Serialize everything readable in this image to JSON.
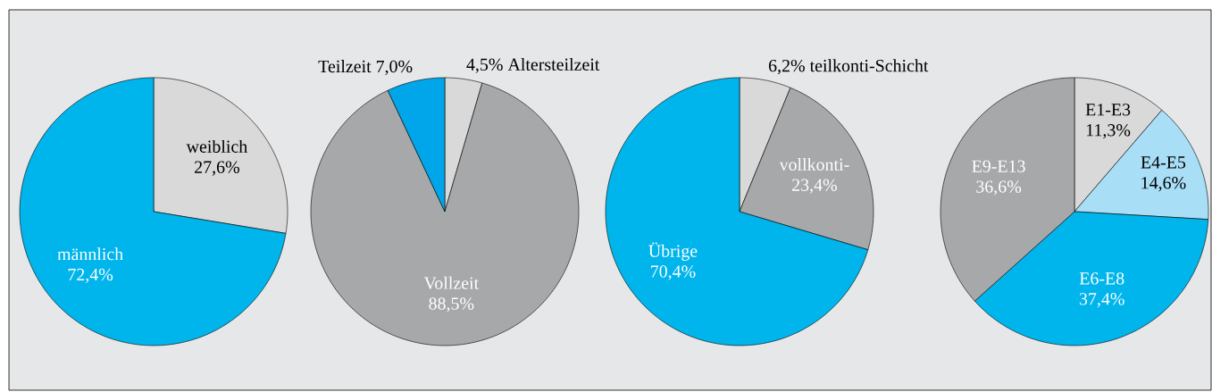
{
  "chart_data": [
    {
      "type": "pie",
      "categories": [
        "weiblich",
        "männlich"
      ],
      "values": [
        27.6,
        72.4
      ],
      "colors": [
        "#d9d9da",
        "#00b5ec"
      ],
      "value_labels": [
        "27,6%",
        "72,4%"
      ]
    },
    {
      "type": "pie",
      "categories": [
        "Altersteilzeit",
        "Vollzeit",
        "Teilzeit"
      ],
      "values": [
        4.5,
        88.5,
        7.0
      ],
      "colors": [
        "#d9d9da",
        "#a7a8aa",
        "#00a6e9"
      ],
      "value_labels": [
        "4,5%",
        "88,5%",
        "7,0%"
      ]
    },
    {
      "type": "pie",
      "categories": [
        "teilkonti-Schicht",
        "vollkonti-",
        "Übrige"
      ],
      "values": [
        6.2,
        23.4,
        70.4
      ],
      "colors": [
        "#d9d9da",
        "#a7a8aa",
        "#00b5ec"
      ],
      "value_labels": [
        "6,2%",
        "23,4%",
        "70,4%"
      ]
    },
    {
      "type": "pie",
      "categories": [
        "E1-E3",
        "E4-E5",
        "E6-E8",
        "E9-E13"
      ],
      "values": [
        11.3,
        14.6,
        37.4,
        36.6
      ],
      "colors": [
        "#d9d9da",
        "#a9def7",
        "#00b5ec",
        "#a7a8aa"
      ],
      "value_labels": [
        "11,3%",
        "14,6%",
        "37,4%",
        "36,6%"
      ]
    }
  ]
}
